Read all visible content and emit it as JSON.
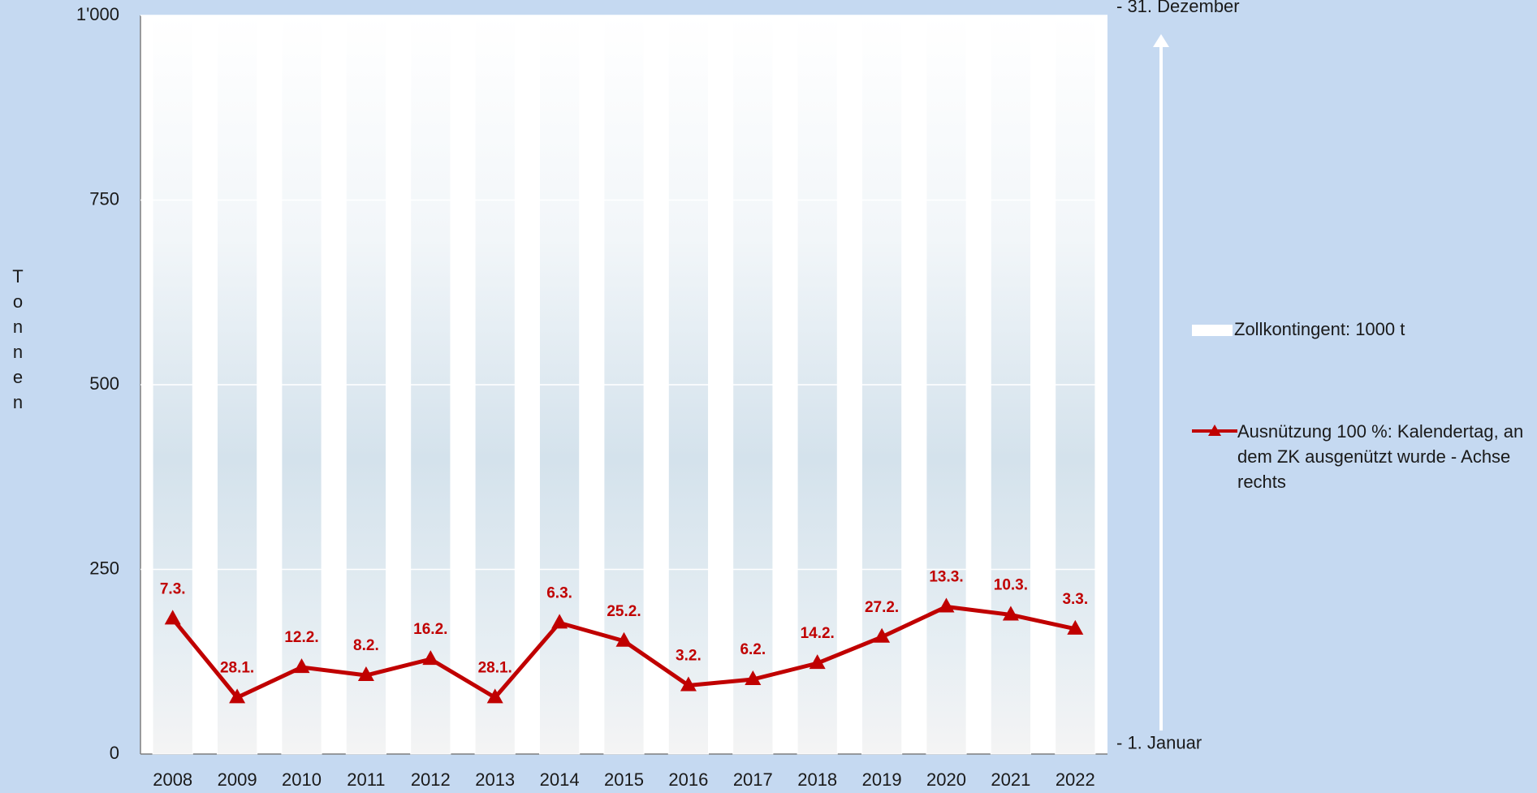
{
  "chart_data": {
    "type": "bar+line",
    "y_label": "Tonnen",
    "categories": [
      "2008",
      "2009",
      "2010",
      "2011",
      "2012",
      "2013",
      "2014",
      "2015",
      "2016",
      "2017",
      "2018",
      "2019",
      "2020",
      "2021",
      "2022"
    ],
    "series": [
      {
        "name": "Zollkontingent: 1000 t",
        "type": "bar",
        "color": "#ffffff",
        "values": [
          1000,
          1000,
          1000,
          1000,
          1000,
          1000,
          1000,
          1000,
          1000,
          1000,
          1000,
          1000,
          1000,
          1000,
          1000
        ]
      },
      {
        "name": "Ausnützung 100 %: Kalendertag, an dem ZK ausgenützt wurde - Achse rechts",
        "type": "line",
        "axis": "y2",
        "color": "#c00000",
        "values": [
          67,
          28,
          43,
          39,
          47,
          28,
          65,
          56,
          34,
          37,
          45,
          58,
          73,
          69,
          62
        ],
        "value_labels": [
          "7.3.",
          "28.1.",
          "12.2.",
          "8.2.",
          "16.2.",
          "28.1.",
          "6.3.",
          "25.2.",
          "3.2.",
          "6.2.",
          "14.2.",
          "27.2.",
          "13.3.",
          "10.3.",
          "3.3."
        ]
      }
    ],
    "ylim": [
      0,
      1000
    ],
    "yticks": [
      0,
      250,
      500,
      750,
      {
        "value": 1000,
        "label": "1'000"
      }
    ],
    "y2lim": [
      0,
      366
    ],
    "y2ticks": [
      {
        "value": 1,
        "label": "- 1. Januar"
      },
      {
        "value": 366,
        "label": "- 31. Dezember"
      }
    ],
    "grid": true,
    "legend": "right"
  }
}
